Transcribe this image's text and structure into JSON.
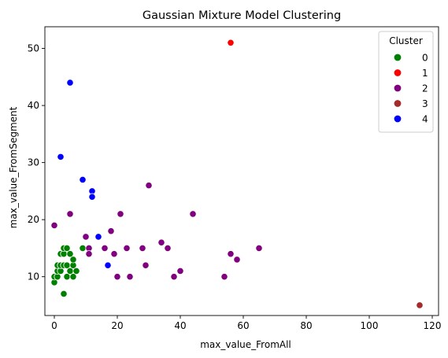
{
  "chart_data": {
    "type": "scatter",
    "title": "Gaussian Mixture Model Clustering",
    "xlabel": "max_value_FromAll",
    "ylabel": "max_value_FromSegment",
    "xlim": [
      -3,
      122
    ],
    "ylim": [
      3.2,
      53.8
    ],
    "xticks": [
      0,
      20,
      40,
      60,
      80,
      100,
      120
    ],
    "yticks": [
      10,
      20,
      30,
      40,
      50
    ],
    "grid": false,
    "legend": {
      "title": "Cluster",
      "placement": "top-right"
    },
    "series": [
      {
        "name": "0",
        "color": "#008000",
        "points": [
          [
            0,
            9
          ],
          [
            0,
            10
          ],
          [
            1,
            10
          ],
          [
            1,
            11
          ],
          [
            1,
            12
          ],
          [
            2,
            11
          ],
          [
            2,
            12
          ],
          [
            2,
            14
          ],
          [
            3,
            14
          ],
          [
            3,
            15
          ],
          [
            3,
            12
          ],
          [
            3,
            7
          ],
          [
            4,
            10
          ],
          [
            4,
            12
          ],
          [
            4,
            15
          ],
          [
            5,
            11
          ],
          [
            5,
            14
          ],
          [
            6,
            10
          ],
          [
            6,
            12
          ],
          [
            6,
            13
          ],
          [
            7,
            11
          ],
          [
            9,
            15
          ]
        ]
      },
      {
        "name": "1",
        "color": "#ff0000",
        "points": [
          [
            56,
            51
          ]
        ]
      },
      {
        "name": "2",
        "color": "#800080",
        "points": [
          [
            0,
            19
          ],
          [
            5,
            21
          ],
          [
            10,
            17
          ],
          [
            11,
            15
          ],
          [
            11,
            14
          ],
          [
            16,
            15
          ],
          [
            18,
            18
          ],
          [
            19,
            14
          ],
          [
            20,
            10
          ],
          [
            21,
            21
          ],
          [
            23,
            15
          ],
          [
            24,
            10
          ],
          [
            28,
            15
          ],
          [
            29,
            12
          ],
          [
            30,
            26
          ],
          [
            34,
            16
          ],
          [
            36,
            15
          ],
          [
            38,
            10
          ],
          [
            40,
            11
          ],
          [
            44,
            21
          ],
          [
            54,
            10
          ],
          [
            56,
            14
          ],
          [
            58,
            13
          ],
          [
            65,
            15
          ]
        ]
      },
      {
        "name": "3",
        "color": "#a52a2a",
        "points": [
          [
            116,
            5
          ]
        ]
      },
      {
        "name": "4",
        "color": "#0000ff",
        "points": [
          [
            2,
            31
          ],
          [
            5,
            44
          ],
          [
            9,
            27
          ],
          [
            12,
            25
          ],
          [
            12,
            24
          ],
          [
            14,
            17
          ],
          [
            17,
            12
          ]
        ]
      }
    ]
  }
}
